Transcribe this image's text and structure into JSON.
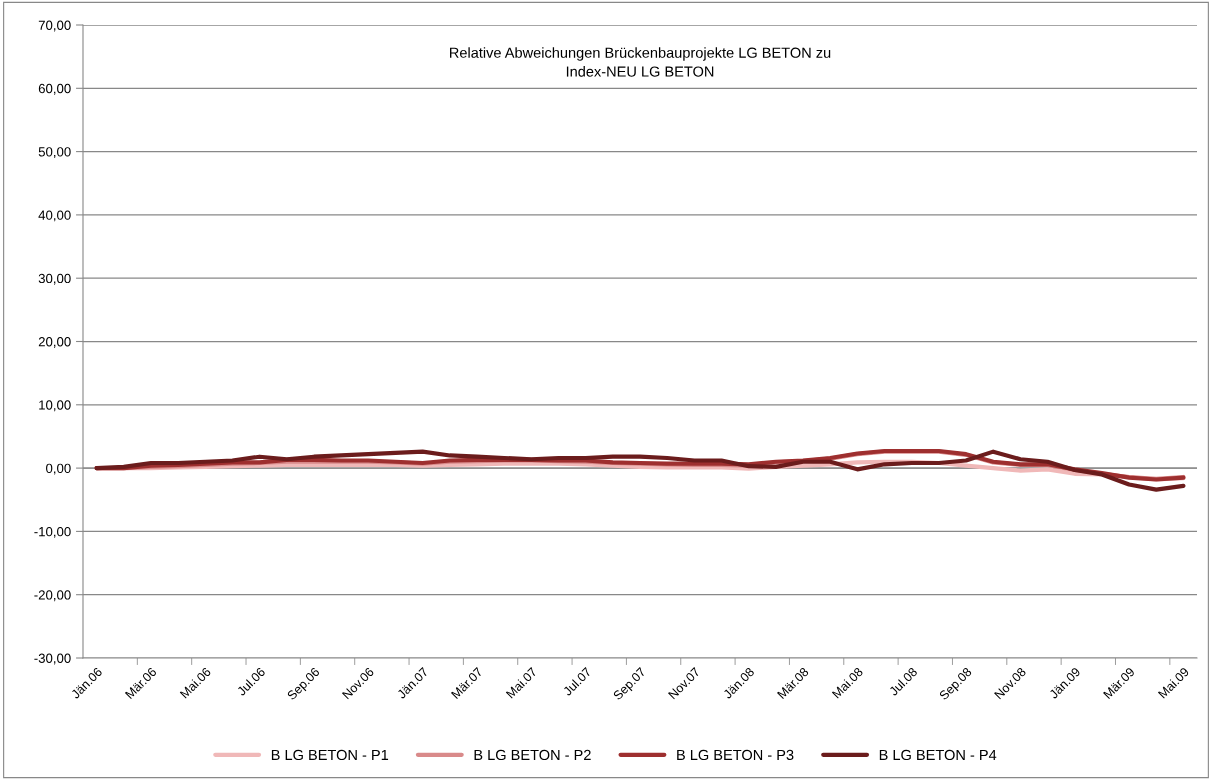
{
  "chart_data": {
    "type": "line",
    "title": "Relative Abweichungen Brückenbauprojekte LG BETON zu\nIndex-NEU LG BETON",
    "categories": [
      "Jän.06",
      null,
      "Mär.06",
      null,
      "Mai.06",
      null,
      "Jul.06",
      null,
      "Sep.06",
      null,
      "Nov.06",
      null,
      "Jän.07",
      null,
      "Mär.07",
      null,
      "Mai.07",
      null,
      "Jul.07",
      null,
      "Sep.07",
      null,
      "Nov.07",
      null,
      "Jän.08",
      null,
      "Mär.08",
      null,
      "Mai.08",
      null,
      "Jul.08",
      null,
      "Sep.08",
      null,
      "Nov.08",
      null,
      "Jän.09",
      null,
      "Mär.09",
      null,
      "Mai.09"
    ],
    "series": [
      {
        "name": "B LG BETON - P1",
        "color": "#f0b8b8",
        "values": [
          0,
          0,
          0,
          0.1,
          0.2,
          0.3,
          0.4,
          0.5,
          0.5,
          0.5,
          0.5,
          0.5,
          0.4,
          0.5,
          0.6,
          0.7,
          0.7,
          0.7,
          0.6,
          0.4,
          0.2,
          0.1,
          0.1,
          0.1,
          -0.1,
          0.2,
          0.4,
          0.6,
          0.9,
          1.0,
          1.0,
          0.8,
          0.4,
          0.0,
          -0.4,
          -0.2,
          -0.9,
          -1.0,
          -1.4,
          -1.8,
          -1.6
        ]
      },
      {
        "name": "B LG BETON - P2",
        "color": "#d98a8a",
        "values": [
          0,
          0,
          0.2,
          0.3,
          0.5,
          0.7,
          0.8,
          1.0,
          1.0,
          1.0,
          1.0,
          0.9,
          0.7,
          1.0,
          1.1,
          1.2,
          1.2,
          1.1,
          1.0,
          0.8,
          0.7,
          0.6,
          0.5,
          0.5,
          0.4,
          0.9,
          1.1,
          1.5,
          2.2,
          2.6,
          2.6,
          2.6,
          2.1,
          0.9,
          0.5,
          0.5,
          -0.3,
          -0.9,
          -1.4,
          -1.7,
          -1.4
        ]
      },
      {
        "name": "B LG BETON - P3",
        "color": "#9e2f2f",
        "values": [
          0,
          0,
          0.4,
          0.5,
          0.7,
          0.9,
          0.9,
          1.3,
          1.3,
          1.2,
          1.2,
          1.0,
          0.8,
          1.2,
          1.3,
          1.3,
          1.3,
          1.2,
          1.2,
          0.9,
          0.8,
          0.7,
          0.7,
          0.7,
          0.6,
          1.0,
          1.2,
          1.6,
          2.3,
          2.7,
          2.7,
          2.7,
          2.2,
          1.0,
          0.6,
          0.6,
          -0.2,
          -0.8,
          -1.5,
          -1.8,
          -1.5
        ]
      },
      {
        "name": "B LG BETON - P4",
        "color": "#6b1c1c",
        "values": [
          0,
          0.2,
          0.8,
          0.8,
          1.0,
          1.2,
          1.8,
          1.4,
          1.8,
          2.0,
          2.2,
          2.4,
          2.6,
          2.0,
          1.8,
          1.6,
          1.4,
          1.6,
          1.6,
          1.8,
          1.8,
          1.6,
          1.2,
          1.2,
          0.3,
          0.2,
          1.0,
          1.0,
          -0.2,
          0.6,
          0.8,
          0.8,
          1.2,
          2.6,
          1.4,
          1.0,
          -0.3,
          -1.0,
          -2.6,
          -3.4,
          -2.8
        ]
      }
    ],
    "ylim": [
      -30,
      70
    ],
    "yticks": [
      {
        "value": -30,
        "label": "-30,00"
      },
      {
        "value": -20,
        "label": "-20,00"
      },
      {
        "value": -10,
        "label": "-10,00"
      },
      {
        "value": 0,
        "label": "0,00"
      },
      {
        "value": 10,
        "label": "10,00"
      },
      {
        "value": 20,
        "label": "20,00"
      },
      {
        "value": 30,
        "label": "30,00"
      },
      {
        "value": 40,
        "label": "40,00"
      },
      {
        "value": 50,
        "label": "50,00"
      },
      {
        "value": 60,
        "label": "60,00"
      },
      {
        "value": 70,
        "label": "70,00"
      }
    ],
    "grid": "y",
    "legend": "bottom",
    "marker": "none",
    "line_style": "solid"
  }
}
